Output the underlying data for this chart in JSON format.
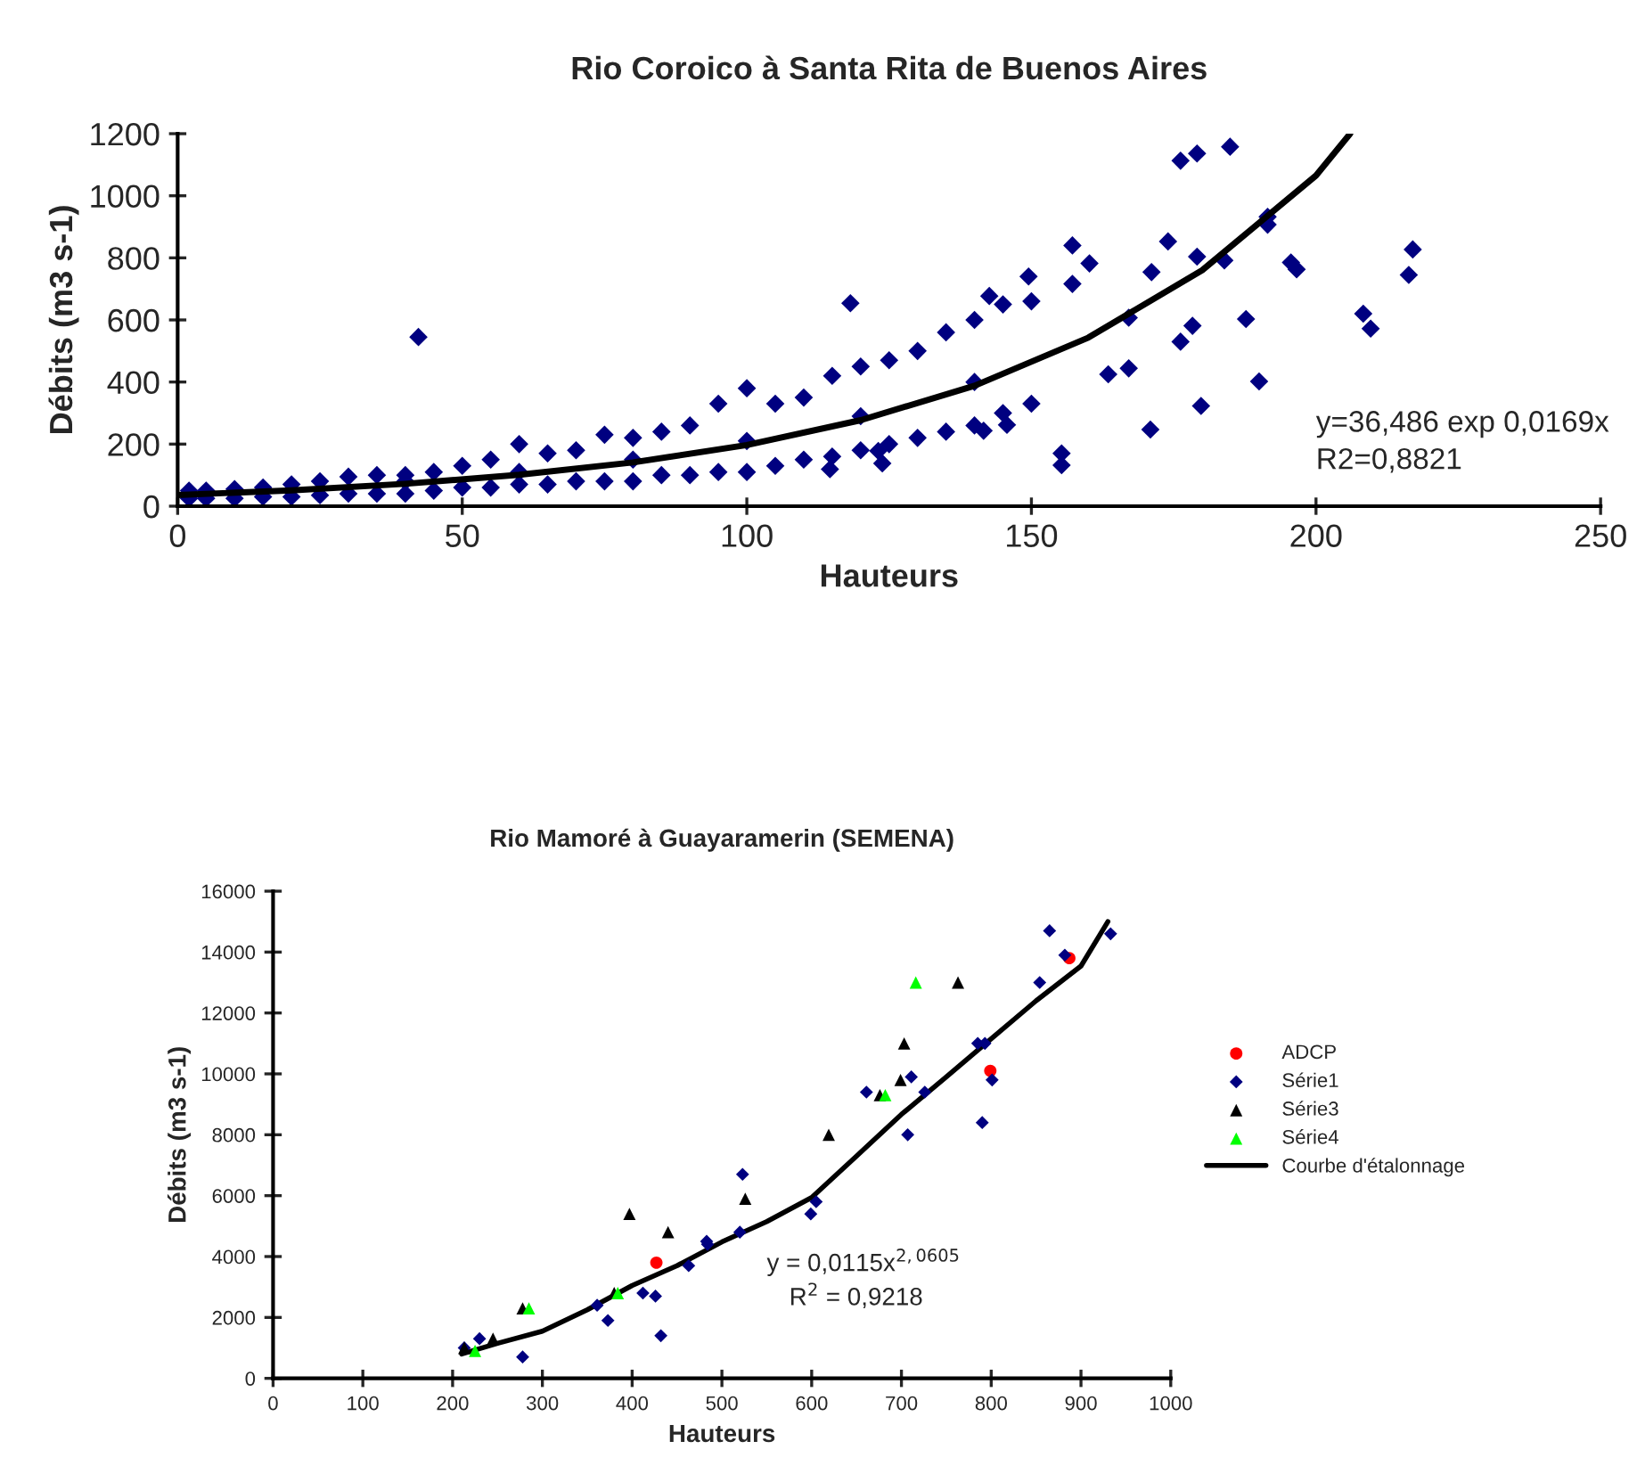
{
  "chart_data": [
    {
      "type": "scatter",
      "title": "Rio Coroico à Santa Rita de Buenos Aires",
      "xlabel": "Hauteurs",
      "ylabel": "Débits (m3 s-1)",
      "xlim": [
        0,
        250
      ],
      "ylim": [
        0,
        1200
      ],
      "xticks": [
        0,
        50,
        100,
        150,
        200,
        250
      ],
      "yticks": [
        0,
        200,
        400,
        600,
        800,
        1000,
        1200
      ],
      "grid": false,
      "legend": false,
      "marker": "diamond",
      "annotations": [
        "y=36,486 exp 0,0169x",
        "R2=0,8821"
      ],
      "series": [
        {
          "color": "#000080",
          "x": [
            2,
            5,
            10,
            15,
            20,
            25,
            30,
            35,
            40,
            45,
            50,
            55,
            60,
            65,
            70,
            75,
            80,
            85,
            90,
            95,
            100,
            105,
            110,
            115,
            120,
            125,
            130,
            135,
            140,
            145,
            150,
            2,
            5,
            10,
            15,
            20,
            25,
            30,
            35,
            40,
            45,
            50,
            55,
            60,
            65,
            70,
            75,
            80,
            85,
            90,
            95,
            100,
            105,
            110,
            115,
            120,
            125,
            130,
            135,
            140,
            145,
            150,
            40,
            60,
            80,
            100,
            120,
            140,
            42.3,
            176.2,
            179.1,
            184.9,
            191.5,
            191.5,
            217,
            216.3,
            195.6,
            196.6,
            208.3,
            209.6,
            190,
            179.8,
            170.9,
            155.3,
            155.3,
            118.2,
            174,
            157.2,
            179.1,
            183.9,
            171.1,
            160.2,
            157.2,
            149.5,
            142.6,
            167.1,
            178.3,
            187.7,
            176.2,
            163.5,
            167.1,
            141.6,
            145.7,
            123.8,
            114.6,
            123.1
          ],
          "values": [
            50,
            50,
            55,
            60,
            70,
            80,
            95,
            100,
            100,
            110,
            130,
            150,
            200,
            170,
            180,
            230,
            220,
            240,
            260,
            330,
            380,
            330,
            350,
            420,
            450,
            470,
            500,
            560,
            600,
            650,
            660,
            25,
            25,
            25,
            30,
            30,
            35,
            40,
            40,
            40,
            50,
            60,
            60,
            70,
            70,
            80,
            80,
            80,
            100,
            100,
            110,
            110,
            130,
            150,
            160,
            180,
            200,
            220,
            240,
            260,
            300,
            330,
            80,
            110,
            150,
            210,
            290,
            400,
            545,
            1113,
            1136,
            1158,
            932,
            907,
            827,
            745,
            785,
            763,
            620,
            572,
            402,
            323,
            247,
            170,
            132,
            654,
            853,
            840,
            804,
            792,
            754,
            782,
            716,
            740,
            677,
            607,
            581,
            603,
            530,
            425,
            444,
            243,
            262,
            138,
            119,
            178
          ]
        },
        {
          "type": "line",
          "color": "#000000",
          "marker": "none",
          "line_style": "solid",
          "x": [
            0,
            20,
            40,
            60,
            80,
            100,
            120,
            140,
            160,
            180,
            200,
            206
          ],
          "values": [
            36,
            51,
            72,
            101,
            141,
            197,
            277,
            388,
            543,
            760,
            1065,
            1200
          ]
        }
      ]
    },
    {
      "type": "scatter",
      "title": "Rio Mamoré à Guayaramerin (SEMENA)",
      "xlabel": "Hauteurs",
      "ylabel": "Débits (m3 s-1)",
      "xlim": [
        0,
        1000
      ],
      "ylim": [
        0,
        16000
      ],
      "xticks": [
        0,
        100,
        200,
        300,
        400,
        500,
        600,
        700,
        800,
        900,
        1000
      ],
      "yticks": [
        0,
        2000,
        4000,
        6000,
        8000,
        10000,
        12000,
        14000,
        16000
      ],
      "grid": false,
      "legend": "right",
      "annotations": [
        "y = 0,0115x$^{2,0605}$",
        "R$^{2}$ = 0,9218"
      ],
      "series": [
        {
          "name": "ADCP",
          "color": "#ff0000",
          "marker": "circle",
          "x": [
            427,
            799,
            887
          ],
          "values": [
            3800,
            10100,
            13800
          ]
        },
        {
          "name": "Série1",
          "color": "#000080",
          "marker": "diamond",
          "x": [
            213,
            230,
            278,
            361,
            373,
            412,
            426,
            432,
            463,
            483,
            484,
            520,
            523,
            599,
            605,
            661,
            707,
            711,
            726,
            785,
            793,
            790,
            801,
            854,
            865,
            882,
            933
          ],
          "values": [
            1000,
            1300,
            700,
            2400,
            1900,
            2800,
            2700,
            1400,
            3700,
            4500,
            4400,
            4800,
            6700,
            5400,
            5800,
            9400,
            8000,
            9900,
            9400,
            11000,
            11000,
            8400,
            9800,
            13000,
            14700,
            13900,
            14600
          ]
        },
        {
          "name": "Série3",
          "color": "#000000",
          "marker": "triangle",
          "x": [
            213,
            245,
            278,
            380,
            397,
            440,
            526,
            619,
            676,
            699,
            703,
            763
          ],
          "values": [
            1000,
            1300,
            2300,
            2800,
            5400,
            4800,
            5900,
            8000,
            9300,
            9800,
            11000,
            13000
          ]
        },
        {
          "name": "Série4",
          "color": "#00ff00",
          "marker": "triangle",
          "x": [
            225,
            285,
            384,
            682,
            716
          ],
          "values": [
            900,
            2300,
            2800,
            9300,
            13000
          ]
        },
        {
          "name": "Courbe d'étalonnage",
          "type": "line",
          "color": "#000000",
          "marker": "none",
          "line_style": "solid",
          "x": [
            210,
            250,
            300,
            350,
            400,
            450,
            500,
            550,
            600,
            650,
            700,
            750,
            800,
            850,
            900,
            930
          ],
          "values": [
            800,
            1150,
            1550,
            2250,
            3050,
            3700,
            4480,
            5150,
            5940,
            7300,
            8670,
            9900,
            11150,
            12400,
            13540,
            15000
          ]
        }
      ]
    }
  ]
}
